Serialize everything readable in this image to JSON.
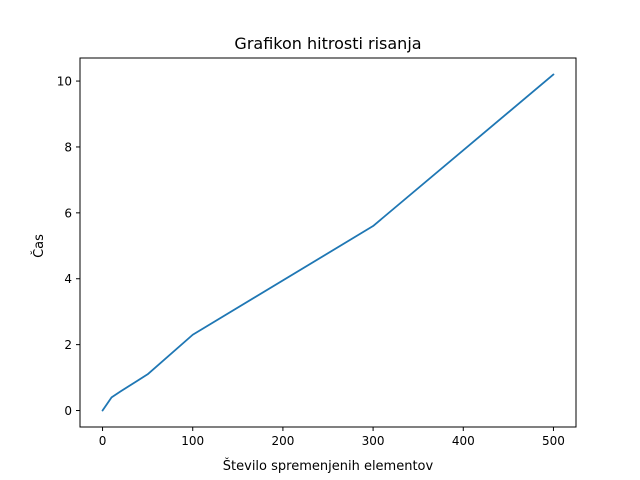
{
  "chart_data": {
    "type": "line",
    "title": "Grafikon hitrosti risanja",
    "xlabel": "Število spremenjenih elementov",
    "ylabel": "Čas",
    "xlim": [
      -25,
      525
    ],
    "ylim": [
      -0.5,
      10.7
    ],
    "xticks": [
      0,
      100,
      200,
      300,
      400,
      500
    ],
    "yticks": [
      0,
      2,
      4,
      6,
      8,
      10
    ],
    "grid": false,
    "series": [
      {
        "color": "#1f77b4",
        "x": [
          0,
          10,
          20,
          50,
          100,
          300,
          500
        ],
        "y": [
          0.0,
          0.4,
          0.58,
          1.1,
          2.3,
          5.6,
          10.2
        ]
      }
    ]
  }
}
